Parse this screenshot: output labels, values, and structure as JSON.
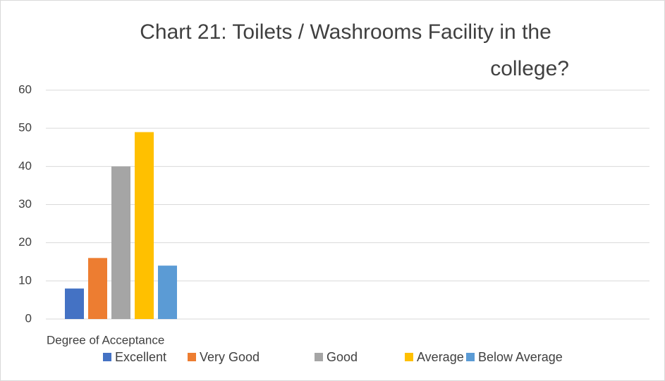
{
  "chart_data": {
    "type": "bar",
    "title": "Chart 21: Toilets / Washrooms Facility in the college?",
    "categories": [
      "Degree of Acceptance"
    ],
    "series": [
      {
        "name": "Excellent",
        "color": "#4472c4",
        "values": [
          8
        ]
      },
      {
        "name": "Very Good",
        "color": "#ed7d31",
        "values": [
          16
        ]
      },
      {
        "name": "Good",
        "color": "#a5a5a5",
        "values": [
          40
        ]
      },
      {
        "name": "Average",
        "color": "#ffc000",
        "values": [
          49
        ]
      },
      {
        "name": "Below Average",
        "color": "#5b9bd5",
        "values": [
          14
        ]
      }
    ],
    "ylim": [
      0,
      60
    ],
    "yticks": [
      0,
      10,
      20,
      30,
      40,
      50,
      60
    ],
    "grid": true,
    "legend": "bottom"
  }
}
